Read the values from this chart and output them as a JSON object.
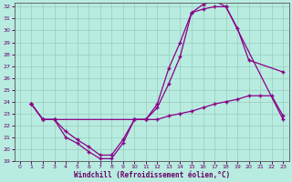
{
  "xlabel": "Windchill (Refroidissement éolien,°C)",
  "background_color": "#b8ece0",
  "grid_color": "#99ccbb",
  "line_color": "#880088",
  "text_color": "#660066",
  "xlim": [
    -0.5,
    23.5
  ],
  "ylim": [
    19,
    32.3
  ],
  "yticks": [
    19,
    20,
    21,
    22,
    23,
    24,
    25,
    26,
    27,
    28,
    29,
    30,
    31,
    32
  ],
  "xticks": [
    0,
    1,
    2,
    3,
    4,
    5,
    6,
    7,
    8,
    9,
    10,
    11,
    12,
    13,
    14,
    15,
    16,
    17,
    18,
    19,
    20,
    21,
    22,
    23
  ],
  "line1_x": [
    1,
    2,
    3,
    4,
    5,
    6,
    7,
    8,
    9,
    10,
    11,
    12,
    13,
    14,
    15,
    16,
    17,
    18,
    23
  ],
  "line1_y": [
    23.8,
    22.5,
    22.5,
    21.0,
    20.5,
    19.8,
    19.2,
    19.2,
    20.5,
    22.5,
    22.5,
    23.8,
    26.8,
    29.0,
    31.5,
    31.8,
    32.0,
    32.0,
    22.5
  ],
  "line2_x": [
    1,
    2,
    3,
    10,
    11,
    12,
    13,
    14,
    15,
    16,
    17,
    18,
    19,
    20,
    21,
    22,
    23
  ],
  "line2_y": [
    23.8,
    22.5,
    22.5,
    22.5,
    22.5,
    22.5,
    22.8,
    23.0,
    23.2,
    23.5,
    23.8,
    24.0,
    24.2,
    24.5,
    24.5,
    24.5,
    22.8
  ],
  "line3_x": [
    1,
    2,
    3,
    4,
    5,
    6,
    7,
    8,
    9,
    10,
    11,
    12,
    13,
    14,
    15,
    16,
    17,
    18,
    19,
    20,
    23
  ],
  "line3_y": [
    23.8,
    22.5,
    22.5,
    21.5,
    20.8,
    20.2,
    19.5,
    19.5,
    20.8,
    22.5,
    22.5,
    23.5,
    25.5,
    27.8,
    31.5,
    32.2,
    32.5,
    32.0,
    30.2,
    27.5,
    26.5
  ]
}
